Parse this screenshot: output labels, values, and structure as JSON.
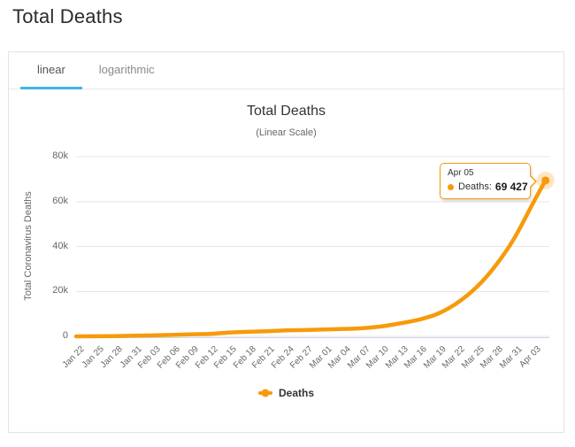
{
  "page": {
    "title": "Total Deaths"
  },
  "tabs": [
    {
      "label": "linear",
      "active": true
    },
    {
      "label": "logarithmic",
      "active": false
    }
  ],
  "colors": {
    "series": "#F79A0A",
    "halo": "rgba(247,154,10,0.25)",
    "tab_accent": "#44B4E6",
    "grid": "#E6E6E6",
    "axis_line": "#CCD6EB"
  },
  "chart_data": {
    "type": "line",
    "title": "Total Deaths",
    "subtitle": "(Linear Scale)",
    "xlabel": "",
    "ylabel": "Total Coronavirus Deaths",
    "ylim": [
      0,
      80000
    ],
    "grid": "horizontal-only",
    "legend_position": "bottom",
    "y_ticks": [
      {
        "value": 0,
        "label": "0"
      },
      {
        "value": 20000,
        "label": "20k"
      },
      {
        "value": 40000,
        "label": "40k"
      },
      {
        "value": 60000,
        "label": "60k"
      },
      {
        "value": 80000,
        "label": "80k"
      }
    ],
    "x_ticks": [
      {
        "day": 0,
        "label": "Jan 22"
      },
      {
        "day": 3,
        "label": "Jan 25"
      },
      {
        "day": 6,
        "label": "Jan 28"
      },
      {
        "day": 9,
        "label": "Jan 31"
      },
      {
        "day": 12,
        "label": "Feb 03"
      },
      {
        "day": 15,
        "label": "Feb 06"
      },
      {
        "day": 18,
        "label": "Feb 09"
      },
      {
        "day": 21,
        "label": "Feb 12"
      },
      {
        "day": 24,
        "label": "Feb 15"
      },
      {
        "day": 27,
        "label": "Feb 18"
      },
      {
        "day": 30,
        "label": "Feb 21"
      },
      {
        "day": 33,
        "label": "Feb 24"
      },
      {
        "day": 36,
        "label": "Feb 27"
      },
      {
        "day": 39,
        "label": "Mar 01"
      },
      {
        "day": 42,
        "label": "Mar 04"
      },
      {
        "day": 45,
        "label": "Mar 07"
      },
      {
        "day": 48,
        "label": "Mar 10"
      },
      {
        "day": 51,
        "label": "Mar 13"
      },
      {
        "day": 54,
        "label": "Mar 16"
      },
      {
        "day": 57,
        "label": "Mar 19"
      },
      {
        "day": 60,
        "label": "Mar 22"
      },
      {
        "day": 63,
        "label": "Mar 25"
      },
      {
        "day": 66,
        "label": "Mar 28"
      },
      {
        "day": 69,
        "label": "Mar 31"
      },
      {
        "day": 72,
        "label": "Apr 03"
      }
    ],
    "series": [
      {
        "name": "Deaths",
        "color": "#F79A0A",
        "points": [
          {
            "day": 0,
            "date": "Jan 22",
            "value": 17
          },
          {
            "day": 3,
            "date": "Jan 25",
            "value": 56
          },
          {
            "day": 6,
            "date": "Jan 28",
            "value": 131
          },
          {
            "day": 9,
            "date": "Jan 31",
            "value": 259
          },
          {
            "day": 12,
            "date": "Feb 03",
            "value": 426
          },
          {
            "day": 15,
            "date": "Feb 06",
            "value": 634
          },
          {
            "day": 18,
            "date": "Feb 09",
            "value": 906
          },
          {
            "day": 21,
            "date": "Feb 12",
            "value": 1118
          },
          {
            "day": 24,
            "date": "Feb 15",
            "value": 1669
          },
          {
            "day": 27,
            "date": "Feb 18",
            "value": 2010
          },
          {
            "day": 30,
            "date": "Feb 21",
            "value": 2251
          },
          {
            "day": 33,
            "date": "Feb 24",
            "value": 2629
          },
          {
            "day": 36,
            "date": "Feb 27",
            "value": 2814
          },
          {
            "day": 39,
            "date": "Mar 01",
            "value": 3050
          },
          {
            "day": 42,
            "date": "Mar 04",
            "value": 3294
          },
          {
            "day": 45,
            "date": "Mar 07",
            "value": 3587
          },
          {
            "day": 48,
            "date": "Mar 10",
            "value": 4373
          },
          {
            "day": 51,
            "date": "Mar 13",
            "value": 5735
          },
          {
            "day": 54,
            "date": "Mar 16",
            "value": 7426
          },
          {
            "day": 57,
            "date": "Mar 19",
            "value": 10066
          },
          {
            "day": 60,
            "date": "Mar 22",
            "value": 14748
          },
          {
            "day": 63,
            "date": "Mar 25",
            "value": 21571
          },
          {
            "day": 66,
            "date": "Mar 28",
            "value": 31063
          },
          {
            "day": 69,
            "date": "Mar 31",
            "value": 43293
          },
          {
            "day": 72,
            "date": "Apr 03",
            "value": 59203
          },
          {
            "day": 74,
            "date": "Apr 05",
            "value": 69427
          }
        ]
      }
    ],
    "highlight": {
      "date": "Apr 05",
      "series_label": "Deaths:",
      "value": 69427,
      "value_display": "69 427"
    }
  }
}
